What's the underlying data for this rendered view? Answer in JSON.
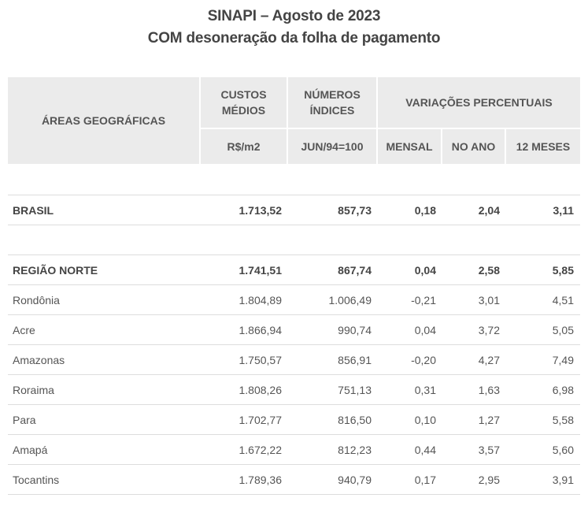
{
  "title_line1": "SINAPI – Agosto de 2023",
  "title_line2": "COM desoneração da folha de pagamento",
  "header": {
    "areas": "ÁREAS GEOGRÁFICAS",
    "custos": "CUSTOS MÉDIOS",
    "numeros": "NÚMEROS ÍNDICES",
    "variacoes": "VARIAÇÕES PERCENTUAIS",
    "custos_unit": "R$/m2",
    "numeros_unit": "JUN/94=100",
    "mensal": "MENSAL",
    "no_ano": "NO ANO",
    "doze_meses": "12 MESES"
  },
  "rows": [
    {
      "area": "BRASIL",
      "custo": "1.713,52",
      "indice": "857,73",
      "mensal": "0,18",
      "ano": "2,04",
      "meses12": "3,11",
      "bold": true
    },
    {
      "area": "REGIÃO NORTE",
      "custo": "1.741,51",
      "indice": "867,74",
      "mensal": "0,04",
      "ano": "2,58",
      "meses12": "5,85",
      "bold": true
    },
    {
      "area": "Rondônia",
      "custo": "1.804,89",
      "indice": "1.006,49",
      "mensal": "-0,21",
      "ano": "3,01",
      "meses12": "4,51"
    },
    {
      "area": "Acre",
      "custo": "1.866,94",
      "indice": "990,74",
      "mensal": "0,04",
      "ano": "3,72",
      "meses12": "5,05"
    },
    {
      "area": "Amazonas",
      "custo": "1.750,57",
      "indice": "856,91",
      "mensal": "-0,20",
      "ano": "4,27",
      "meses12": "7,49"
    },
    {
      "area": "Roraima",
      "custo": "1.808,26",
      "indice": "751,13",
      "mensal": "0,31",
      "ano": "1,63",
      "meses12": "6,98"
    },
    {
      "area": "Para",
      "custo": "1.702,77",
      "indice": "816,50",
      "mensal": "0,10",
      "ano": "1,27",
      "meses12": "5,58"
    },
    {
      "area": "Amapá",
      "custo": "1.672,22",
      "indice": "812,23",
      "mensal": "0,44",
      "ano": "3,57",
      "meses12": "5,60"
    },
    {
      "area": "Tocantins",
      "custo": "1.789,36",
      "indice": "940,79",
      "mensal": "0,17",
      "ano": "2,95",
      "meses12": "3,91"
    }
  ]
}
